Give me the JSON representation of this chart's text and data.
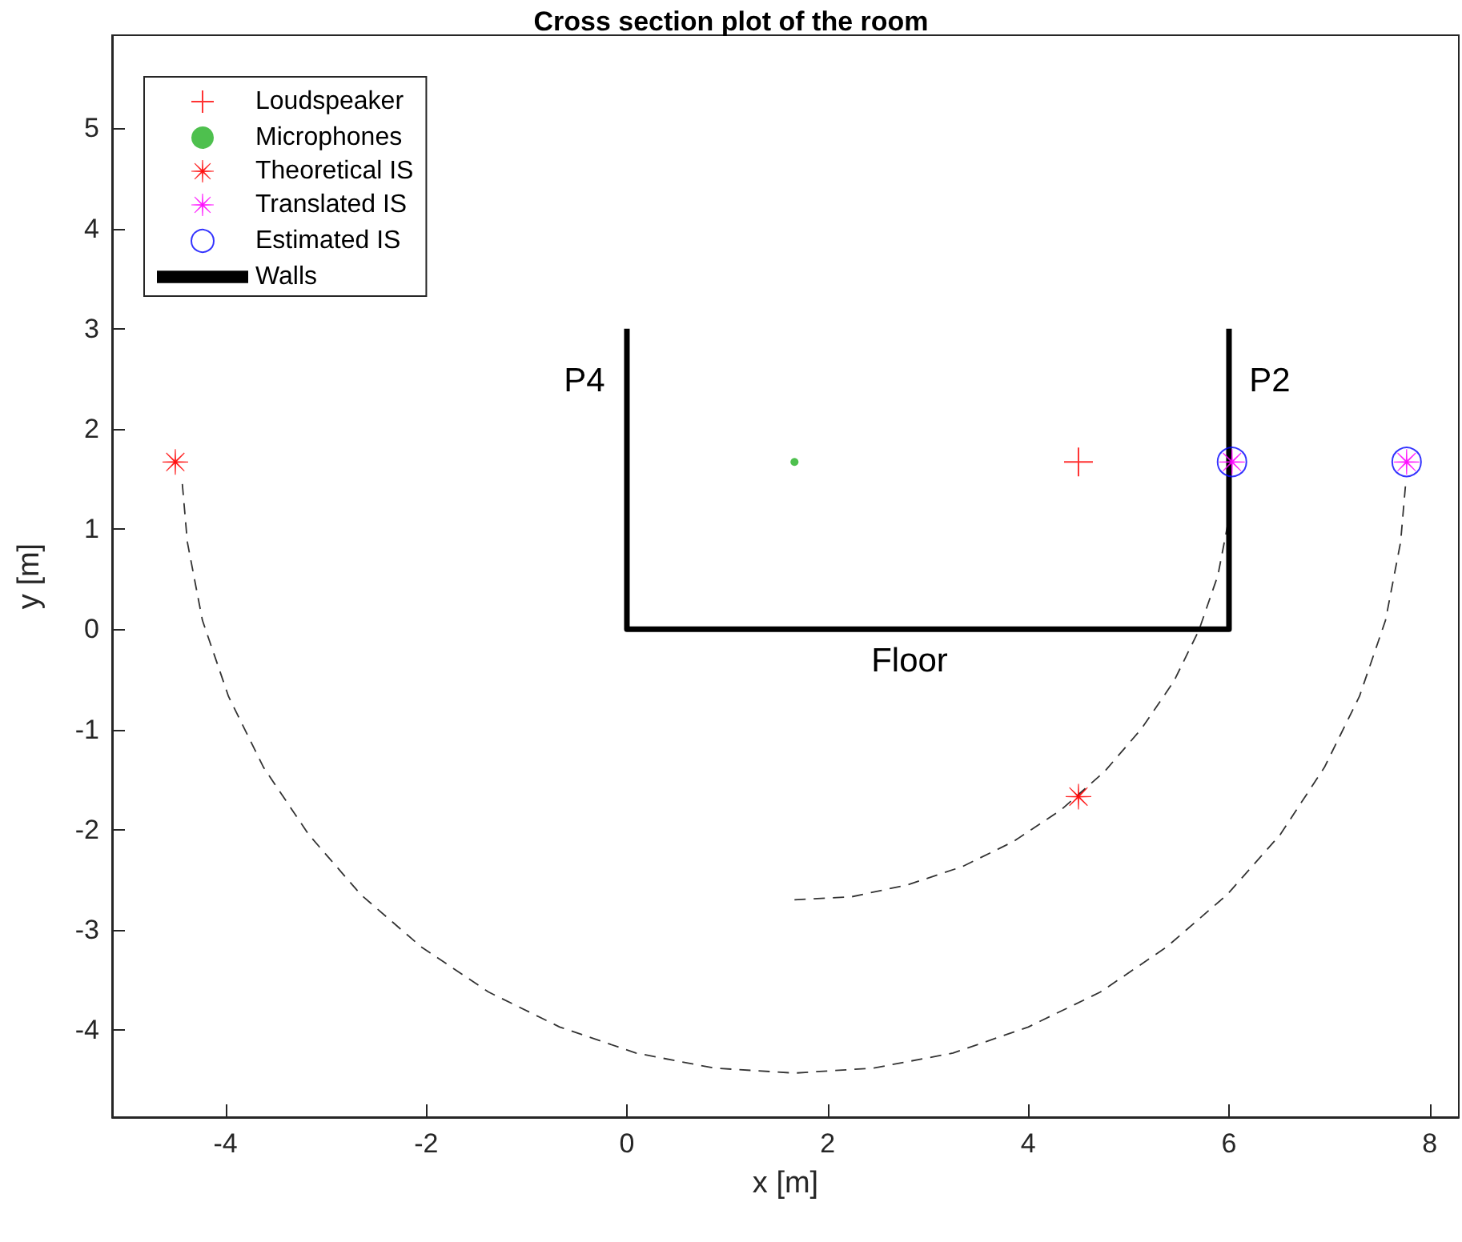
{
  "chart_data": {
    "type": "scatter",
    "title": "Cross section plot of the room",
    "xlabel": "x [m]",
    "ylabel": "y [m]",
    "xlim": [
      -5.13,
      8.29
    ],
    "xticks": [
      -4,
      -2,
      0,
      2,
      4,
      6,
      8
    ],
    "ylim": [
      -4.87,
      5.93
    ],
    "yticks": [
      -4,
      -3,
      -2,
      -1,
      0,
      1,
      2,
      3,
      4,
      5
    ],
    "grid": false,
    "legend": "top left",
    "annotations": [
      "P4",
      "P2",
      "Floor"
    ],
    "series": [
      {
        "type": "line",
        "color": "#333333",
        "line_style": "dashed",
        "marker": "none",
        "x": [
          -4.43,
          -4.38,
          -4.23,
          -3.97,
          -3.62,
          -3.17,
          -2.65,
          -2.05,
          -1.38,
          -0.67,
          0.09,
          0.87,
          1.67,
          2.46,
          3.25,
          4.0,
          4.72,
          5.38,
          5.98,
          6.51,
          6.95,
          7.3,
          7.56,
          7.71,
          7.76
        ],
        "values": [
          1.45,
          0.87,
          0.09,
          -0.67,
          -1.38,
          -2.05,
          -2.65,
          -3.17,
          -3.62,
          -3.97,
          -4.23,
          -4.38,
          -4.43,
          -4.38,
          -4.23,
          -3.97,
          -3.62,
          -3.17,
          -2.65,
          -2.05,
          -1.38,
          -0.67,
          0.09,
          0.87,
          1.45
        ]
      },
      {
        "type": "line",
        "color": "#333333",
        "line_style": "dashed",
        "marker": "none",
        "x": [
          1.67,
          2.24,
          2.8,
          3.34,
          3.85,
          4.33,
          4.76,
          5.13,
          5.45,
          5.7,
          5.89,
          5.99
        ],
        "values": [
          -2.7,
          -2.67,
          -2.55,
          -2.37,
          -2.12,
          -1.8,
          -1.42,
          -0.99,
          -0.52,
          -0.01,
          0.54,
          1.06
        ]
      },
      {
        "name": "Loudspeaker",
        "color": "#ff0000",
        "marker": "cross",
        "x": [
          4.5
        ],
        "values": [
          1.67
        ]
      },
      {
        "name": "Microphones",
        "color": "#22b022",
        "marker": "circle",
        "x": [
          1.67
        ],
        "values": [
          1.67
        ]
      },
      {
        "name": "Theoretical IS",
        "color": "#ff0000",
        "marker": "star",
        "x": [
          -4.5,
          4.5
        ],
        "values": [
          1.67,
          -1.67
        ]
      },
      {
        "name": "Translated IS",
        "color": "#ff00ff",
        "marker": "star",
        "x": [
          6.03,
          7.77
        ],
        "values": [
          1.67,
          1.67
        ]
      },
      {
        "name": "Estimated IS",
        "color": "#0000ff",
        "marker": "circle",
        "x": [
          6.03,
          7.77
        ],
        "values": [
          1.67,
          1.67
        ]
      },
      {
        "name": "Walls",
        "type": "line",
        "color": "#000000",
        "line_style": "solid",
        "marker": "none",
        "x": [
          0,
          0,
          6,
          6
        ],
        "values": [
          3,
          0,
          0,
          3
        ]
      }
    ]
  }
}
